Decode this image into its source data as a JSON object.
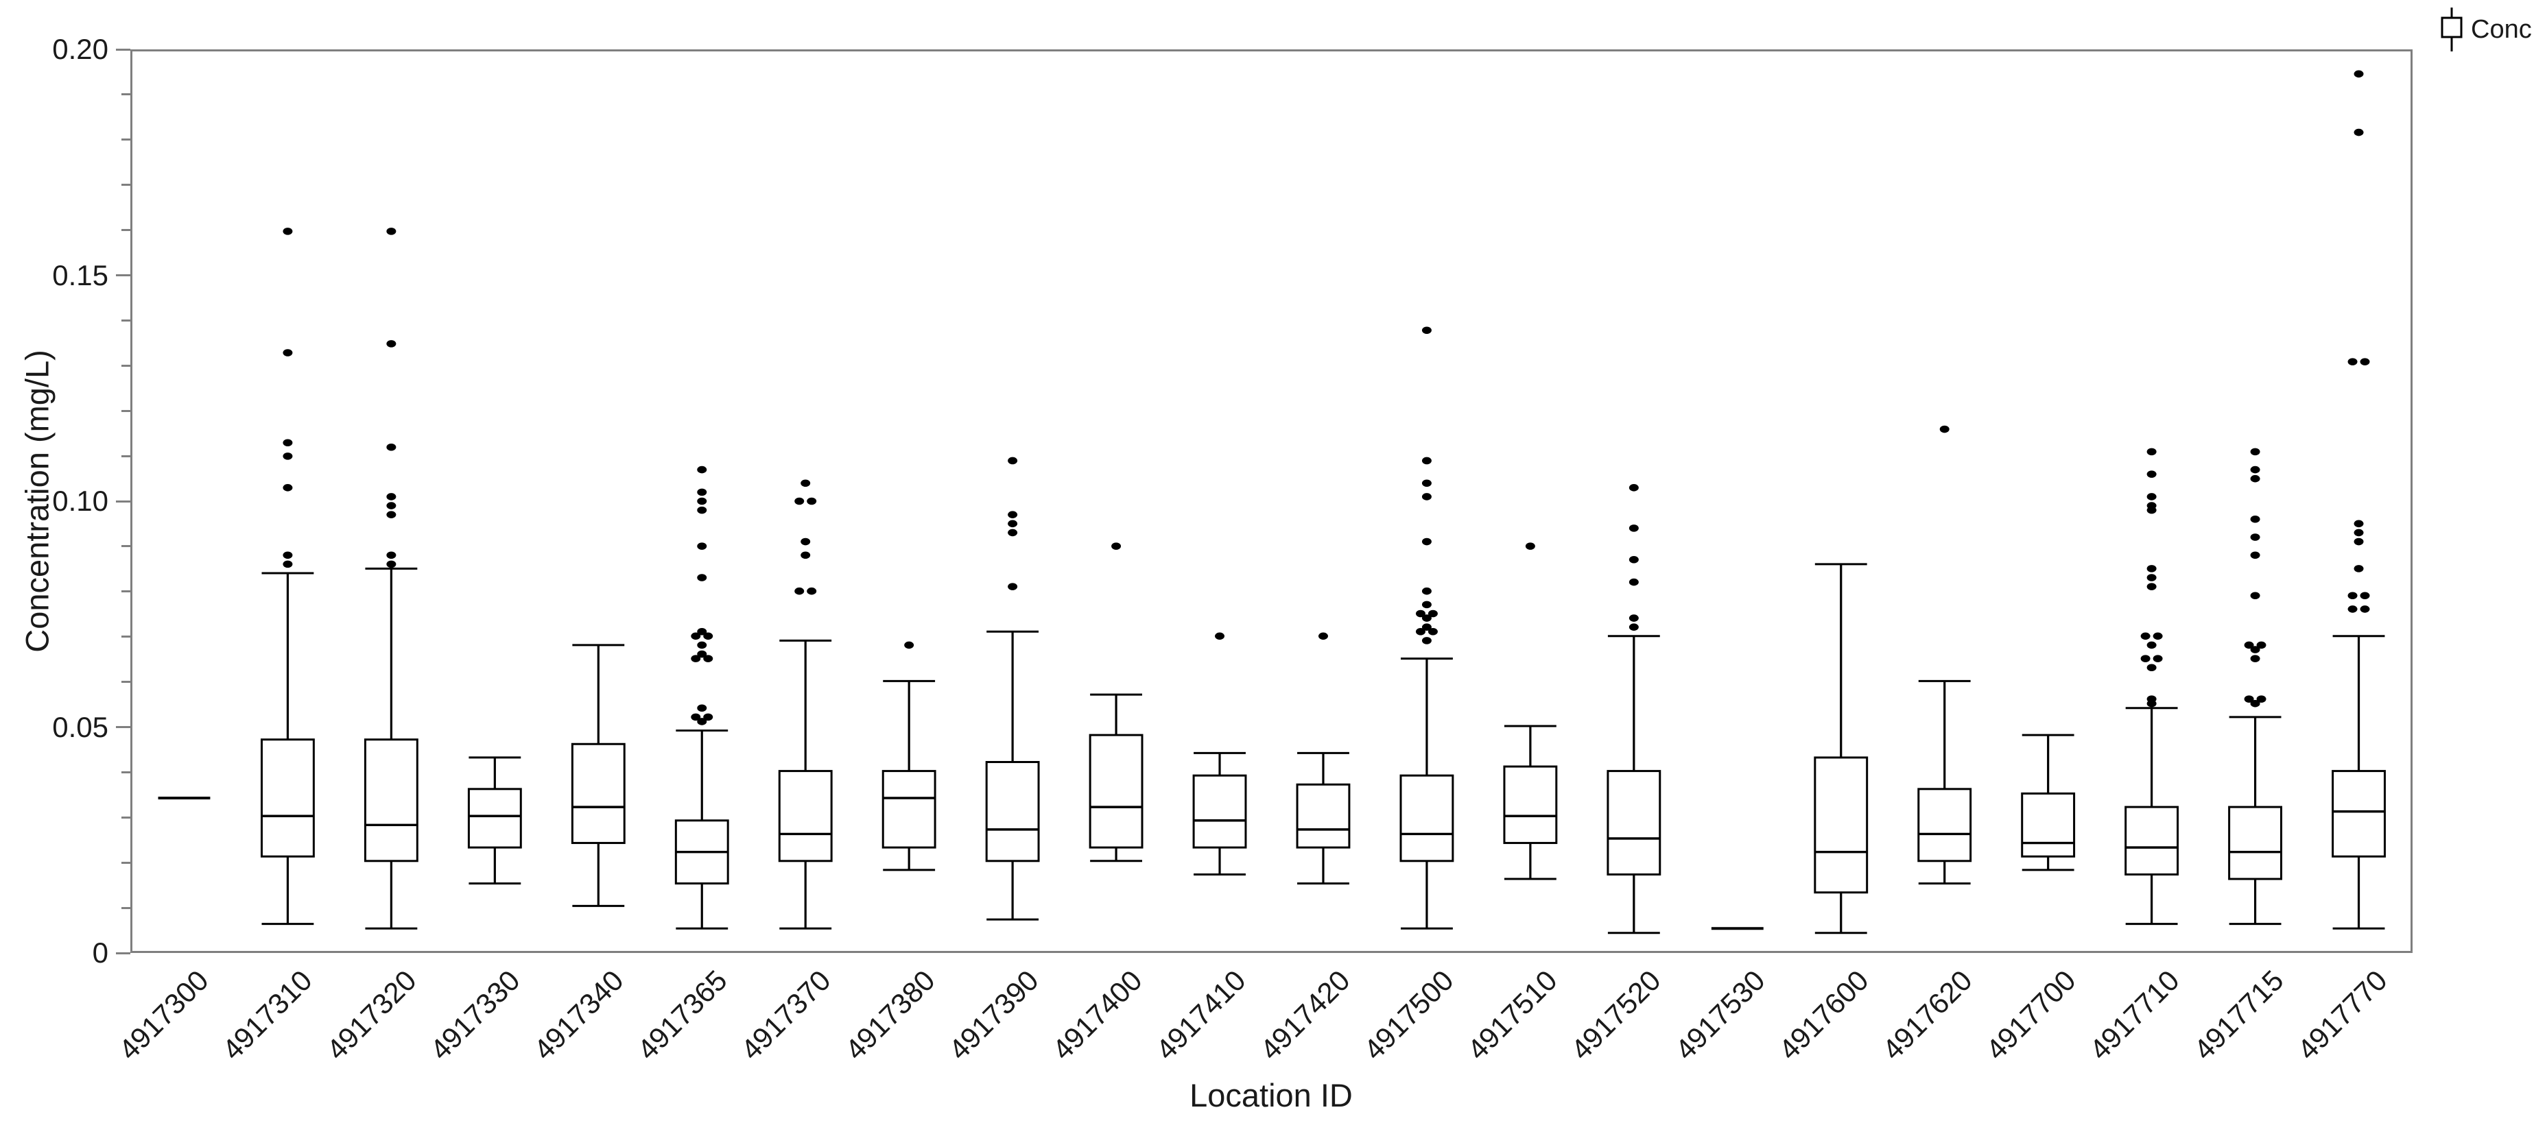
{
  "legend": {
    "label": "Conc"
  },
  "colors": {
    "box_stroke": "#000000",
    "axis": "#7f7f7f",
    "text": "#1a1a1a",
    "background": "#ffffff"
  },
  "chart_data": {
    "type": "boxplot",
    "title": "",
    "xlabel": "Location ID",
    "ylabel": "Concentration (mg/L)",
    "series_name": "Conc",
    "ylim": [
      0,
      0.2
    ],
    "y_minor_step": 0.01,
    "grid": "off",
    "legend_position": "top-right",
    "yticks": [
      {
        "value": 0.2,
        "label": "0.20"
      },
      {
        "value": 0.15,
        "label": "0.15"
      },
      {
        "value": 0.1,
        "label": "0.10"
      },
      {
        "value": 0.05,
        "label": "0.05"
      },
      {
        "value": 0.0,
        "label": "0"
      }
    ],
    "categories": [
      "4917300",
      "4917310",
      "4917320",
      "4917330",
      "4917340",
      "4917365",
      "4917370",
      "4917380",
      "4917390",
      "4917400",
      "4917410",
      "4917420",
      "4917500",
      "4917510",
      "4917520",
      "4917530",
      "4917600",
      "4917620",
      "4917700",
      "4917710",
      "4917715",
      "4917770"
    ],
    "boxes": [
      {
        "location": "4917300",
        "single_value": 0.034,
        "outliers": []
      },
      {
        "location": "4917310",
        "whisker_min": 0.006,
        "q1": 0.021,
        "median": 0.03,
        "q3": 0.047,
        "whisker_max": 0.084,
        "outliers": [
          0.16,
          0.133,
          0.113,
          0.11,
          0.103,
          0.088,
          0.086
        ]
      },
      {
        "location": "4917320",
        "whisker_min": 0.005,
        "q1": 0.02,
        "median": 0.028,
        "q3": 0.047,
        "whisker_max": 0.085,
        "outliers": [
          0.16,
          0.135,
          0.112,
          0.101,
          0.099,
          0.097,
          0.088,
          0.086
        ]
      },
      {
        "location": "4917330",
        "whisker_min": 0.015,
        "q1": 0.023,
        "median": 0.03,
        "q3": 0.036,
        "whisker_max": 0.043,
        "outliers": []
      },
      {
        "location": "4917340",
        "whisker_min": 0.01,
        "q1": 0.024,
        "median": 0.032,
        "q3": 0.046,
        "whisker_max": 0.068,
        "outliers": []
      },
      {
        "location": "4917365",
        "whisker_min": 0.005,
        "q1": 0.015,
        "median": 0.022,
        "q3": 0.029,
        "whisker_max": 0.049,
        "outliers": [
          0.107,
          0.102,
          0.1,
          0.098,
          0.09,
          0.083,
          0.071,
          0.07,
          0.07,
          0.068,
          0.066,
          0.065,
          0.065,
          0.054,
          0.052,
          0.052,
          0.051
        ]
      },
      {
        "location": "4917370",
        "whisker_min": 0.005,
        "q1": 0.02,
        "median": 0.026,
        "q3": 0.04,
        "whisker_max": 0.069,
        "outliers": [
          0.104,
          0.1,
          0.1,
          0.091,
          0.088,
          0.08,
          0.08
        ]
      },
      {
        "location": "4917380",
        "whisker_min": 0.018,
        "q1": 0.023,
        "median": 0.034,
        "q3": 0.04,
        "whisker_max": 0.06,
        "outliers": [
          0.068
        ]
      },
      {
        "location": "4917390",
        "whisker_min": 0.007,
        "q1": 0.02,
        "median": 0.027,
        "q3": 0.042,
        "whisker_max": 0.071,
        "outliers": [
          0.109,
          0.097,
          0.095,
          0.093,
          0.081
        ]
      },
      {
        "location": "4917400",
        "whisker_min": 0.02,
        "q1": 0.023,
        "median": 0.032,
        "q3": 0.048,
        "whisker_max": 0.057,
        "outliers": [
          0.09
        ]
      },
      {
        "location": "4917410",
        "whisker_min": 0.017,
        "q1": 0.023,
        "median": 0.029,
        "q3": 0.039,
        "whisker_max": 0.044,
        "outliers": [
          0.07
        ]
      },
      {
        "location": "4917420",
        "whisker_min": 0.015,
        "q1": 0.023,
        "median": 0.027,
        "q3": 0.037,
        "whisker_max": 0.044,
        "outliers": [
          0.07
        ]
      },
      {
        "location": "4917500",
        "whisker_min": 0.005,
        "q1": 0.02,
        "median": 0.026,
        "q3": 0.039,
        "whisker_max": 0.065,
        "outliers": [
          0.138,
          0.109,
          0.104,
          0.101,
          0.091,
          0.08,
          0.077,
          0.075,
          0.075,
          0.074,
          0.072,
          0.071,
          0.071,
          0.069
        ]
      },
      {
        "location": "4917510",
        "whisker_min": 0.016,
        "q1": 0.024,
        "median": 0.03,
        "q3": 0.041,
        "whisker_max": 0.05,
        "outliers": [
          0.09
        ]
      },
      {
        "location": "4917520",
        "whisker_min": 0.004,
        "q1": 0.017,
        "median": 0.025,
        "q3": 0.04,
        "whisker_max": 0.07,
        "outliers": [
          0.103,
          0.094,
          0.087,
          0.082,
          0.074,
          0.072
        ]
      },
      {
        "location": "4917530",
        "single_value": 0.005,
        "outliers": []
      },
      {
        "location": "4917600",
        "whisker_min": 0.004,
        "q1": 0.013,
        "median": 0.022,
        "q3": 0.043,
        "whisker_max": 0.086,
        "outliers": []
      },
      {
        "location": "4917620",
        "whisker_min": 0.015,
        "q1": 0.02,
        "median": 0.026,
        "q3": 0.036,
        "whisker_max": 0.06,
        "outliers": [
          0.116
        ]
      },
      {
        "location": "4917700",
        "whisker_min": 0.018,
        "q1": 0.021,
        "median": 0.024,
        "q3": 0.035,
        "whisker_max": 0.048,
        "outliers": []
      },
      {
        "location": "4917710",
        "whisker_min": 0.006,
        "q1": 0.017,
        "median": 0.023,
        "q3": 0.032,
        "whisker_max": 0.054,
        "outliers": [
          0.111,
          0.106,
          0.101,
          0.099,
          0.098,
          0.085,
          0.083,
          0.081,
          0.07,
          0.07,
          0.068,
          0.065,
          0.065,
          0.063,
          0.056,
          0.055
        ]
      },
      {
        "location": "4917715",
        "whisker_min": 0.006,
        "q1": 0.016,
        "median": 0.022,
        "q3": 0.032,
        "whisker_max": 0.052,
        "outliers": [
          0.111,
          0.107,
          0.105,
          0.096,
          0.092,
          0.088,
          0.079,
          0.068,
          0.068,
          0.067,
          0.065,
          0.056,
          0.056,
          0.055
        ]
      },
      {
        "location": "4917770",
        "whisker_min": 0.005,
        "q1": 0.021,
        "median": 0.031,
        "q3": 0.04,
        "whisker_max": 0.07,
        "outliers": [
          0.195,
          0.182,
          0.131,
          0.131,
          0.095,
          0.093,
          0.091,
          0.085,
          0.079,
          0.079,
          0.076,
          0.076
        ]
      }
    ]
  }
}
